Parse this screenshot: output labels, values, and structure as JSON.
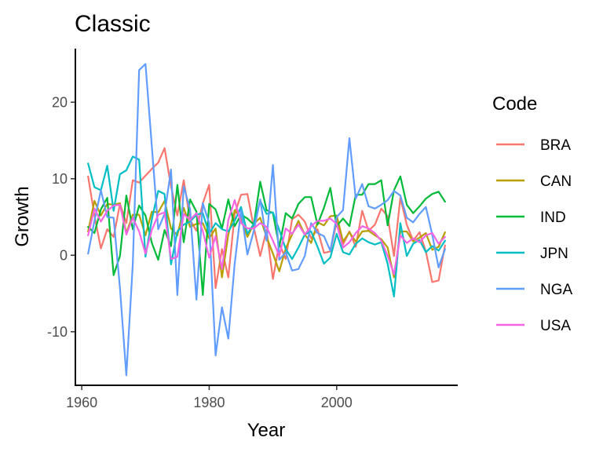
{
  "chart_data": {
    "type": "line",
    "title": "Classic",
    "xlabel": "Year",
    "ylabel": "Growth",
    "xlim": [
      1959,
      2019
    ],
    "ylim": [
      -17,
      27
    ],
    "x_ticks": [
      1960,
      1980,
      2000
    ],
    "y_ticks": [
      -10,
      0,
      10,
      20
    ],
    "legend": {
      "title": "Code",
      "placement": "right"
    },
    "grid": false,
    "x": [
      1961,
      1962,
      1963,
      1964,
      1965,
      1966,
      1967,
      1968,
      1969,
      1970,
      1971,
      1972,
      1973,
      1974,
      1975,
      1976,
      1977,
      1978,
      1979,
      1980,
      1981,
      1982,
      1983,
      1984,
      1985,
      1986,
      1987,
      1988,
      1989,
      1990,
      1991,
      1992,
      1993,
      1994,
      1995,
      1996,
      1997,
      1998,
      1999,
      2000,
      2001,
      2002,
      2003,
      2004,
      2005,
      2006,
      2007,
      2008,
      2009,
      2010,
      2011,
      2012,
      2013,
      2014,
      2015,
      2016,
      2017
    ],
    "series": [
      {
        "name": "BRA",
        "color": "#F8766D",
        "values": [
          10.3,
          5.2,
          0.9,
          3.4,
          2.4,
          6.7,
          4.2,
          9.8,
          9.5,
          10.4,
          11.3,
          12.1,
          14.0,
          9.0,
          5.2,
          9.8,
          4.6,
          3.2,
          6.8,
          9.2,
          -4.3,
          0.8,
          -2.9,
          5.4,
          7.9,
          8.0,
          3.6,
          -0.1,
          3.3,
          -3.1,
          1.5,
          -0.5,
          4.7,
          5.3,
          4.4,
          2.2,
          3.4,
          0.3,
          0.5,
          4.4,
          1.4,
          3.1,
          1.1,
          5.8,
          3.2,
          4.0,
          6.1,
          5.1,
          -0.1,
          7.5,
          4.0,
          1.9,
          3.0,
          0.5,
          -3.5,
          -3.3,
          1.3
        ]
      },
      {
        "name": "CAN",
        "color": "#B79F00",
        "values": [
          3.1,
          7.1,
          5.2,
          6.7,
          6.6,
          6.8,
          2.9,
          5.3,
          5.3,
          2.6,
          5.7,
          5.6,
          7.1,
          3.5,
          2.6,
          6.2,
          3.7,
          4.1,
          4.2,
          2.2,
          3.5,
          -2.9,
          2.7,
          5.9,
          4.8,
          2.4,
          4.1,
          4.9,
          2.4,
          0.2,
          -2.1,
          0.9,
          2.7,
          4.5,
          2.7,
          1.6,
          4.3,
          3.9,
          5.1,
          5.2,
          1.8,
          3.0,
          1.8,
          3.1,
          3.2,
          2.6,
          2.1,
          1.0,
          -2.9,
          3.1,
          3.1,
          1.8,
          2.3,
          2.9,
          0.7,
          1.1,
          3.0
        ]
      },
      {
        "name": "IND",
        "color": "#00BA38",
        "values": [
          3.7,
          2.9,
          6.0,
          7.5,
          -2.6,
          -0.1,
          7.8,
          3.4,
          6.5,
          5.2,
          1.6,
          -0.6,
          3.3,
          1.2,
          9.2,
          1.7,
          7.3,
          5.7,
          -5.2,
          6.7,
          6.0,
          3.5,
          7.3,
          3.8,
          5.3,
          4.8,
          4.0,
          9.6,
          5.9,
          5.5,
          1.1,
          5.5,
          4.8,
          6.7,
          7.6,
          7.6,
          4.0,
          6.2,
          8.8,
          3.8,
          4.8,
          3.8,
          7.9,
          7.9,
          9.3,
          9.3,
          9.8,
          3.9,
          8.5,
          10.3,
          6.6,
          5.5,
          6.4,
          7.4,
          8.0,
          8.3,
          7.0
        ]
      },
      {
        "name": "JPN",
        "color": "#00BFC4",
        "values": [
          12.0,
          8.9,
          8.5,
          11.7,
          5.8,
          10.6,
          11.1,
          12.9,
          12.5,
          -0.2,
          4.7,
          8.4,
          8.0,
          -1.2,
          3.1,
          4.0,
          4.4,
          5.3,
          5.5,
          2.8,
          4.2,
          3.4,
          3.1,
          4.5,
          6.3,
          2.8,
          4.1,
          7.1,
          5.4,
          5.6,
          3.3,
          0.8,
          -0.5,
          1.0,
          2.7,
          3.1,
          1.1,
          -1.1,
          -0.3,
          2.8,
          0.4,
          0.1,
          1.5,
          2.2,
          1.7,
          1.4,
          1.7,
          -1.1,
          -5.4,
          4.2,
          -0.1,
          1.5,
          2.0,
          0.4,
          1.2,
          0.6,
          1.9
        ]
      },
      {
        "name": "NGA",
        "color": "#619CFF",
        "values": [
          0.2,
          4.5,
          8.5,
          5.0,
          4.9,
          -4.3,
          -15.7,
          -1.2,
          24.2,
          25.0,
          14.2,
          3.4,
          5.4,
          11.2,
          -5.2,
          9.0,
          6.0,
          -5.8,
          6.8,
          4.2,
          -13.1,
          -6.8,
          -10.9,
          -1.1,
          5.9,
          0.1,
          3.2,
          7.3,
          1.9,
          11.8,
          -0.6,
          0.4,
          -2.0,
          -1.8,
          -0.1,
          4.2,
          2.9,
          2.5,
          0.6,
          5.0,
          5.9,
          15.3,
          7.4,
          9.3,
          6.4,
          6.1,
          6.6,
          7.2,
          8.4,
          7.8,
          4.9,
          4.3,
          5.4,
          6.3,
          2.7,
          -1.6,
          0.8
        ]
      },
      {
        "name": "USA",
        "color": "#F564E3",
        "values": [
          2.6,
          6.1,
          4.4,
          5.8,
          6.5,
          6.6,
          2.7,
          4.9,
          3.1,
          0.2,
          3.3,
          5.3,
          5.6,
          -0.5,
          -0.2,
          5.4,
          4.6,
          5.5,
          3.2,
          -0.3,
          2.5,
          -1.8,
          4.6,
          7.2,
          4.2,
          3.5,
          3.5,
          4.2,
          3.7,
          1.9,
          -0.1,
          3.5,
          2.8,
          4.0,
          2.7,
          3.8,
          4.5,
          4.5,
          4.8,
          4.1,
          1.0,
          1.7,
          2.9,
          3.8,
          3.5,
          2.9,
          1.9,
          -0.1,
          -2.5,
          2.6,
          1.6,
          2.2,
          1.7,
          2.6,
          2.9,
          1.5,
          2.4
        ]
      }
    ]
  }
}
